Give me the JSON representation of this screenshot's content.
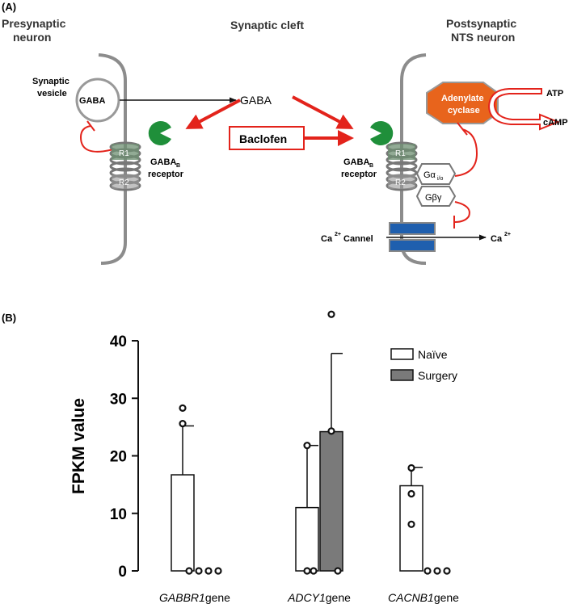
{
  "panel_a": {
    "label": "(A)",
    "pre_title_1": "Presynaptic",
    "pre_title_2": "neuron",
    "cleft_title": "Synaptic cleft",
    "post_title_1": "Postsynaptic",
    "post_title_2": "NTS neuron",
    "vesicle_label_1": "Synaptic",
    "vesicle_label_2": "vesicle",
    "vesicle_text": "GABA",
    "gaba_center": "GABA",
    "baclofen": "Baclofen",
    "receptor_pre_1": "GABA",
    "receptor_pre_sub": "B",
    "receptor_pre_2": "receptor",
    "receptor_post_1": "GABA",
    "receptor_post_sub": "B",
    "receptor_post_2": "receptor",
    "r1": "R1",
    "r2": "R2",
    "adenylate_1": "Adenylate",
    "adenylate_2": "cyclase",
    "atp": "ATP",
    "camp": "cAMP",
    "g_alpha": "Gα",
    "g_alpha_sub": "i/o",
    "g_beta": "Gβγ",
    "ca_channel": "Cannel",
    "ca_in": "Ca",
    "ca_in_sup": "2+",
    "ca_out": "Ca",
    "ca_out_sup": "2+",
    "colors": {
      "arrow_red": "#e3231b",
      "receptor_green": "#1f8f3a",
      "cyclase_orange": "#e8641c",
      "channel_blue": "#1f5fae"
    }
  },
  "panel_b": {
    "label": "(B)"
  },
  "chart_data": {
    "type": "bar",
    "categories": [
      "GABBR1 gene",
      "ADCY1 gene",
      "CACNB1 gene"
    ],
    "category_italic": [
      "GABBR1",
      "ADCY1",
      "CACNB1"
    ],
    "category_suffix": [
      "gene",
      "gene",
      "gene"
    ],
    "series": [
      {
        "name": "Naïve",
        "values": [
          16.7,
          11.0,
          14.8
        ],
        "errors": [
          8.5,
          10.8,
          3.2
        ],
        "points": [
          [
            28.3,
            25.6,
            0
          ],
          [
            21.8,
            0,
            0
          ],
          [
            17.9,
            13.4,
            8.1
          ]
        ],
        "color": "#ffffff"
      },
      {
        "name": "Surgery",
        "values": [
          0,
          24.2,
          0
        ],
        "errors": [
          0,
          13.6,
          0
        ],
        "points": [
          [
            0,
            0,
            0
          ],
          [
            44.6,
            24.3,
            0
          ],
          [
            0,
            0,
            0
          ]
        ],
        "color": "#7a7a7a"
      }
    ],
    "ylabel": "FPKM value",
    "ylim": [
      0,
      40
    ],
    "yticks": [
      0,
      10,
      20,
      30,
      40
    ],
    "legend_position": "top-right"
  }
}
